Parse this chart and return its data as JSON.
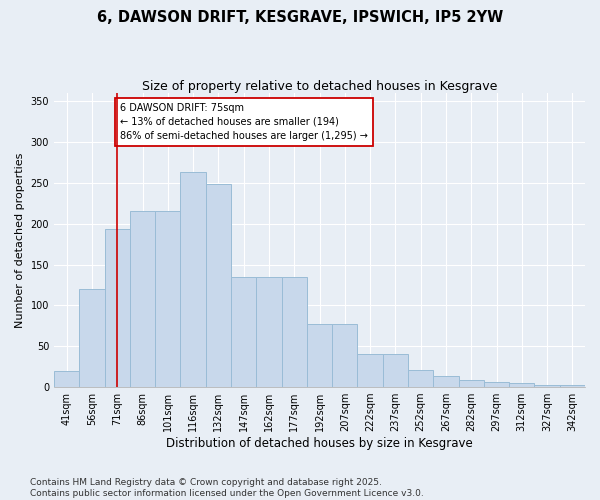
{
  "title": "6, DAWSON DRIFT, KESGRAVE, IPSWICH, IP5 2YW",
  "subtitle": "Size of property relative to detached houses in Kesgrave",
  "xlabel": "Distribution of detached houses by size in Kesgrave",
  "ylabel": "Number of detached properties",
  "categories": [
    "41sqm",
    "56sqm",
    "71sqm",
    "86sqm",
    "101sqm",
    "116sqm",
    "132sqm",
    "147sqm",
    "162sqm",
    "177sqm",
    "192sqm",
    "207sqm",
    "222sqm",
    "237sqm",
    "252sqm",
    "267sqm",
    "282sqm",
    "297sqm",
    "312sqm",
    "327sqm",
    "342sqm"
  ],
  "values": [
    20,
    120,
    193,
    215,
    215,
    263,
    248,
    135,
    135,
    135,
    77,
    77,
    40,
    40,
    21,
    14,
    9,
    6,
    5,
    3,
    2
  ],
  "bar_color": "#c8d8eb",
  "bar_edge_color": "#9abcd6",
  "vline_x_index": 2,
  "vline_color": "#cc0000",
  "annotation_text": "6 DAWSON DRIFT: 75sqm\n← 13% of detached houses are smaller (194)\n86% of semi-detached houses are larger (1,295) →",
  "annotation_box_color": "#ffffff",
  "annotation_box_edge": "#cc0000",
  "ylim": [
    0,
    360
  ],
  "yticks": [
    0,
    50,
    100,
    150,
    200,
    250,
    300,
    350
  ],
  "footer": "Contains HM Land Registry data © Crown copyright and database right 2025.\nContains public sector information licensed under the Open Government Licence v3.0.",
  "bg_color": "#e8eef5",
  "plot_bg_color": "#e8eef5",
  "title_fontsize": 10.5,
  "subtitle_fontsize": 9,
  "tick_fontsize": 7,
  "ylabel_fontsize": 8,
  "xlabel_fontsize": 8.5,
  "footer_fontsize": 6.5
}
